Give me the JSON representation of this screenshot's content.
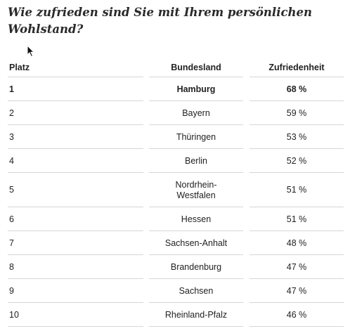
{
  "title": "Wie zufrieden sind Sie mit Ihrem persönlichen Wohlstand?",
  "columns": {
    "rank": "Platz",
    "state": "Bundesland",
    "satisfaction": "Zufriedenheit"
  },
  "rows": [
    {
      "rank": "1",
      "state": "Hamburg",
      "satisfaction": "68 %"
    },
    {
      "rank": "2",
      "state": "Bayern",
      "satisfaction": "59 %"
    },
    {
      "rank": "3",
      "state": "Thüringen",
      "satisfaction": "53 %"
    },
    {
      "rank": "4",
      "state": "Berlin",
      "satisfaction": "52 %"
    },
    {
      "rank": "5",
      "state": "Nordrhein-Westfalen",
      "satisfaction": "51 %"
    },
    {
      "rank": "6",
      "state": "Hessen",
      "satisfaction": "51 %"
    },
    {
      "rank": "7",
      "state": "Sachsen-Anhalt",
      "satisfaction": "48 %"
    },
    {
      "rank": "8",
      "state": "Brandenburg",
      "satisfaction": "47 %"
    },
    {
      "rank": "9",
      "state": "Sachsen",
      "satisfaction": "47 %"
    },
    {
      "rank": "10",
      "state": "Rheinland-Pfalz",
      "satisfaction": "46 %"
    }
  ],
  "colors": {
    "text": "#222222",
    "rule": "#d6d6d6",
    "background": "#ffffff"
  },
  "icons": {
    "cursor": "mouse-pointer-icon"
  }
}
